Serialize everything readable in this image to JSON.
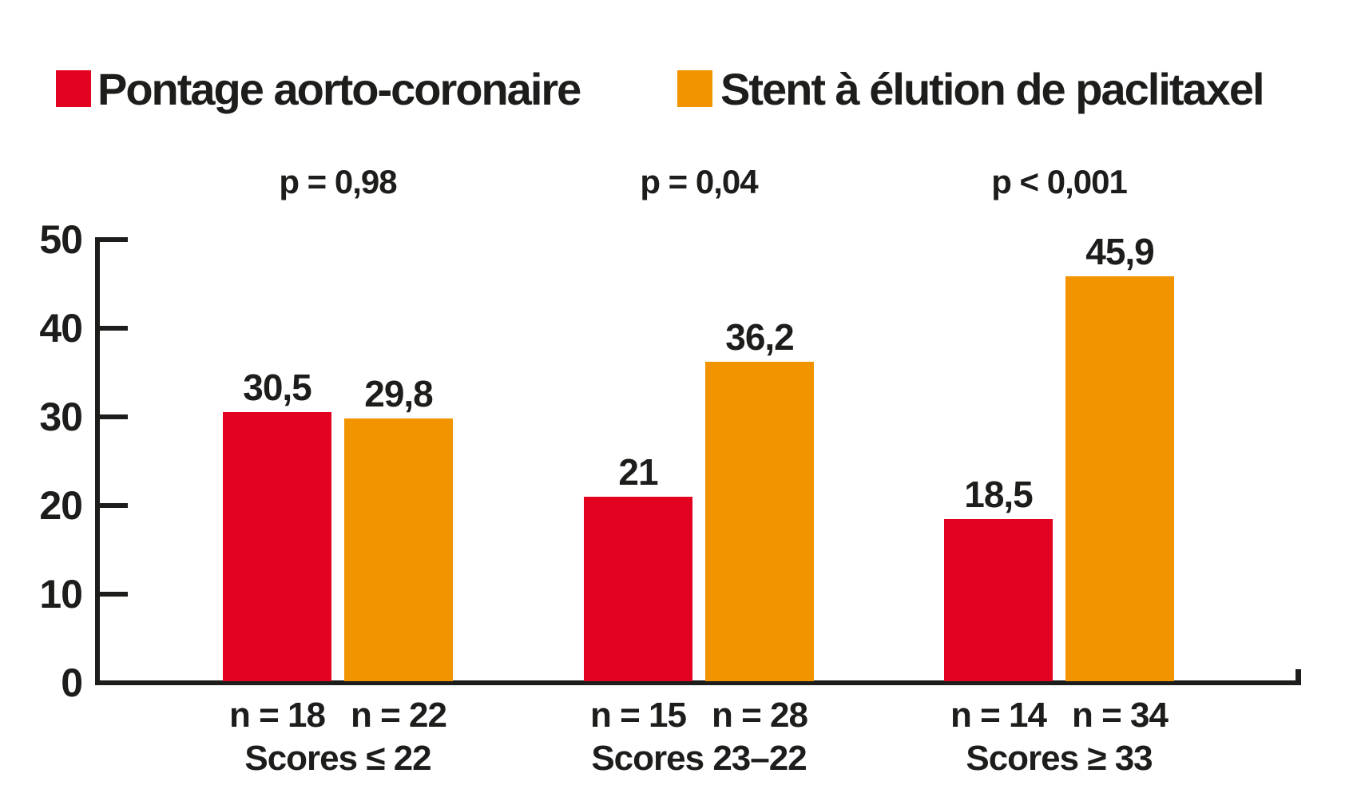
{
  "chart_data": {
    "type": "bar",
    "categories": [
      "Scores ≤ 22",
      "Scores 23–22",
      "Scores ≥ 33"
    ],
    "series": [
      {
        "name": "Pontage aorto-coronaire",
        "color": "#e30321",
        "values": [
          30.5,
          21,
          18.5
        ],
        "value_labels": [
          "30,5",
          "21",
          "18,5"
        ],
        "n_labels": [
          "n = 18",
          "n = 15",
          "n = 14"
        ]
      },
      {
        "name": "Stent à élution de paclitaxel",
        "color": "#f29400",
        "values": [
          29.8,
          36.2,
          45.9
        ],
        "value_labels": [
          "29,8",
          "36,2",
          "45,9"
        ],
        "n_labels": [
          "n = 22",
          "n = 28",
          "n = 34"
        ]
      }
    ],
    "p_values": [
      "p = 0,98",
      "p = 0,04",
      "p < 0,001"
    ],
    "y_ticks": [
      0,
      10,
      20,
      30,
      40,
      50
    ],
    "ylim": [
      0,
      50
    ],
    "title": "",
    "xlabel": "",
    "ylabel": "",
    "legend_position": "top",
    "grid": false,
    "text_color": "#1d1d1b"
  }
}
